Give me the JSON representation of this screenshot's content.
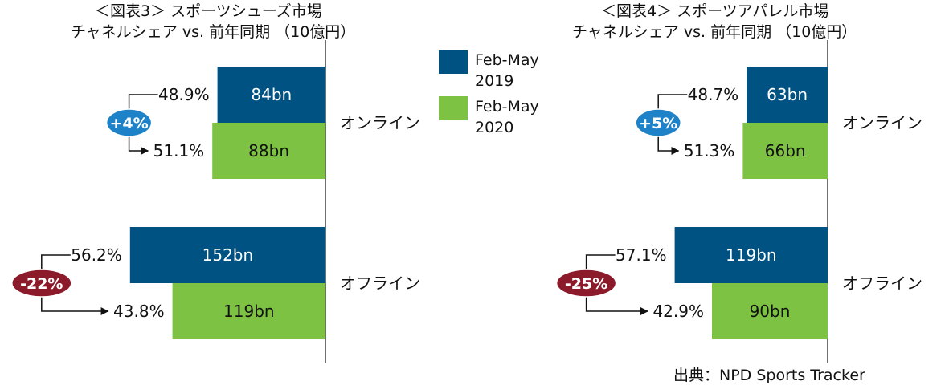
{
  "colors": {
    "y2019": "#005282",
    "y2020": "#7dc242",
    "badge_up": "#1e82c8",
    "badge_down": "#8b1a2b"
  },
  "legend": {
    "item_2019": "Feb-May\n2019",
    "item_2020": "Feb-May\n2020"
  },
  "source": "出典：NPD Sports Tracker",
  "chart_data": [
    {
      "type": "bar",
      "title": "＜図表3＞ スポーツシューズ市場",
      "subtitle": "チャネルシェア vs. 前年同期 （10億円）",
      "categories": [
        "オンライン",
        "オフライン"
      ],
      "series": [
        {
          "name": "Feb-May 2019",
          "values": [
            84,
            152
          ],
          "labels": [
            "84bn",
            "152bn"
          ],
          "shares": [
            "48.9%",
            "56.2%"
          ]
        },
        {
          "name": "Feb-May 2020",
          "values": [
            88,
            119
          ],
          "labels": [
            "88bn",
            "119bn"
          ],
          "shares": [
            "51.1%",
            "43.8%"
          ]
        }
      ],
      "changes": [
        "+4%",
        "-22%"
      ],
      "orientation": "horizontal",
      "bars_extend": "left"
    },
    {
      "type": "bar",
      "title": "＜図表4＞ スポーツアパレル市場",
      "subtitle": "チャネルシェア vs. 前年同期 （10億円）",
      "categories": [
        "オンライン",
        "オフライン"
      ],
      "series": [
        {
          "name": "Feb-May 2019",
          "values": [
            63,
            119
          ],
          "labels": [
            "63bn",
            "119bn"
          ],
          "shares": [
            "48.7%",
            "57.1%"
          ]
        },
        {
          "name": "Feb-May 2020",
          "values": [
            66,
            90
          ],
          "labels": [
            "66bn",
            "90bn"
          ],
          "shares": [
            "51.3%",
            "42.9%"
          ]
        }
      ],
      "changes": [
        "+5%",
        "-25%"
      ],
      "orientation": "horizontal",
      "bars_extend": "left"
    }
  ]
}
